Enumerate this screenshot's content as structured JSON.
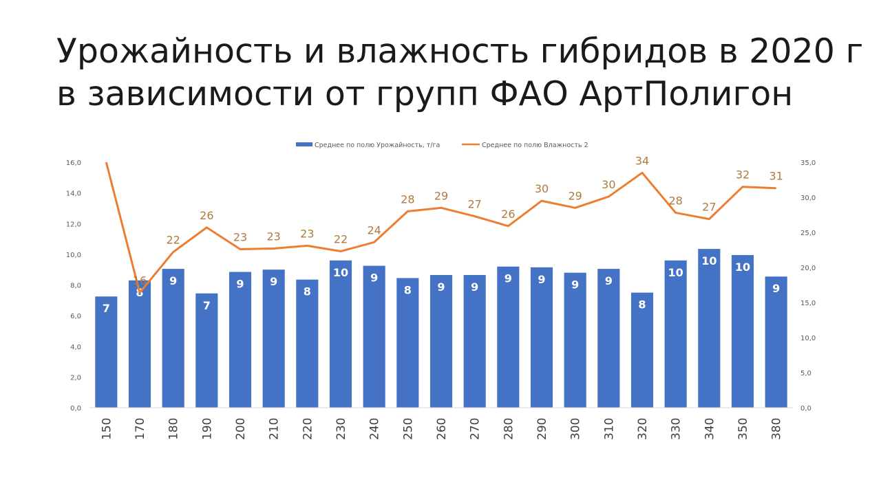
{
  "slide": {
    "title_line1": "Урожайность и влажность гибридов в 2020 г",
    "title_line2": "в зависимости от групп ФАО АртПолигон"
  },
  "colors": {
    "bar": "#4472c4",
    "line": "#ed7d31",
    "line_label": "#b07a3f",
    "axis_text": "#595959",
    "gridline": "#d9d9d9"
  },
  "chart_data": {
    "type": "bar+line",
    "title": "",
    "xlabel": "",
    "ylabel": "",
    "categories": [
      "150",
      "170",
      "180",
      "190",
      "200",
      "210",
      "220",
      "230",
      "240",
      "250",
      "260",
      "270",
      "280",
      "290",
      "300",
      "310",
      "320",
      "330",
      "340",
      "350",
      "380"
    ],
    "series": [
      {
        "name": "Среднее по полю Урожайность, т/га",
        "type": "bar",
        "axis": "left",
        "values": [
          7.25,
          8.3,
          9.05,
          7.45,
          8.85,
          9.0,
          8.35,
          9.6,
          9.25,
          8.45,
          8.65,
          8.65,
          9.2,
          9.15,
          8.8,
          9.05,
          7.5,
          9.6,
          10.35,
          9.95,
          8.55
        ],
        "data_labels": [
          "7",
          "8",
          "9",
          "7",
          "9",
          "9",
          "8",
          "10",
          "9",
          "8",
          "9",
          "9",
          "9",
          "9",
          "9",
          "9",
          "8",
          "10",
          "10",
          "10",
          "9"
        ]
      },
      {
        "name": "Среднее по полю Влажность 2",
        "type": "line",
        "axis": "right",
        "values": [
          35.0,
          16.4,
          22.2,
          25.7,
          22.6,
          22.7,
          23.1,
          22.3,
          23.6,
          28.0,
          28.5,
          27.3,
          25.9,
          29.5,
          28.5,
          30.1,
          33.5,
          27.8,
          26.9,
          31.5,
          31.3
        ],
        "data_labels": [
          "",
          "16",
          "22",
          "26",
          "23",
          "23",
          "23",
          "22",
          "24",
          "28",
          "29",
          "27",
          "26",
          "30",
          "29",
          "30",
          "34",
          "28",
          "27",
          "32",
          "31"
        ]
      }
    ],
    "left_axis": {
      "min": 0,
      "max": 16,
      "ticks": [
        "0,0",
        "2,0",
        "4,0",
        "6,0",
        "8,0",
        "10,0",
        "12,0",
        "14,0",
        "16,0"
      ]
    },
    "right_axis": {
      "min": 0,
      "max": 35,
      "ticks": [
        "0,0",
        "5,0",
        "10,0",
        "15,0",
        "20,0",
        "25,0",
        "30,0",
        "35,0"
      ]
    },
    "legend_position": "top",
    "grid": false
  }
}
